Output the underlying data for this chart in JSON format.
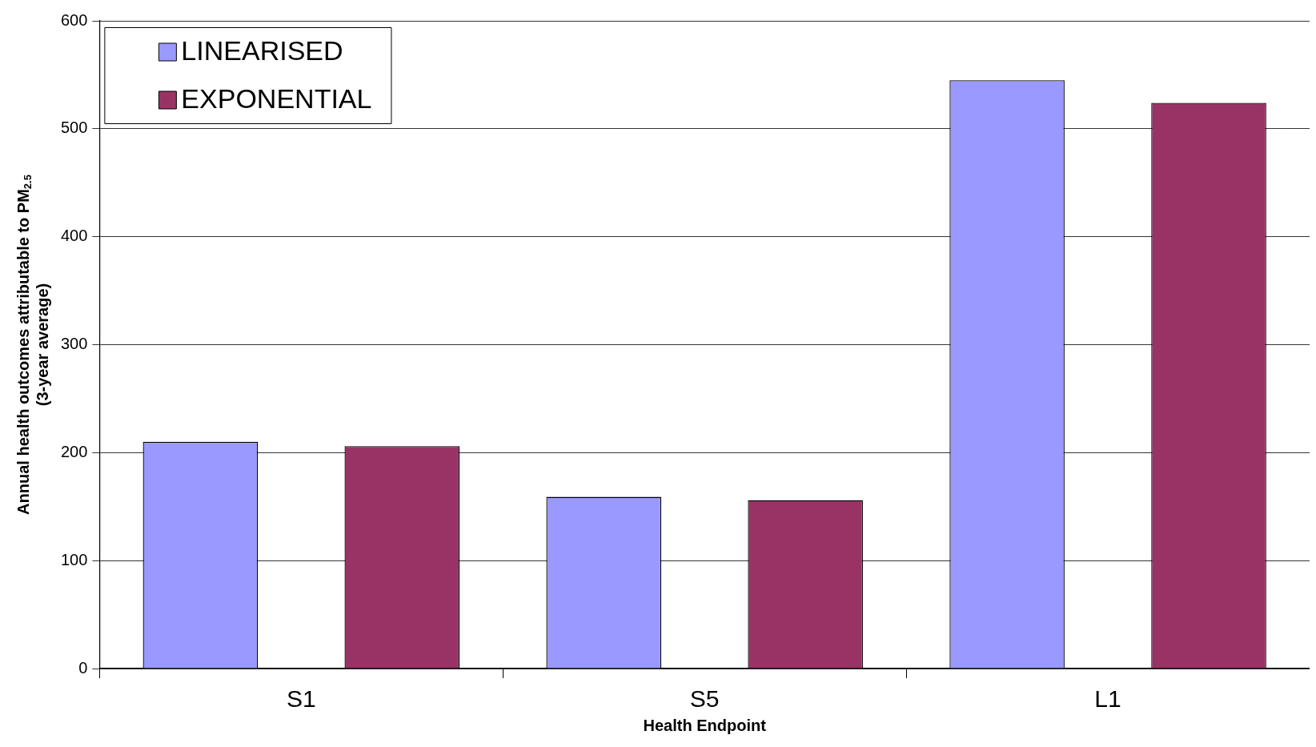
{
  "chart_data": {
    "type": "bar",
    "xlabel": "Health Endpoint",
    "ylabel": "Annual health outcomes attributable to PM$_{2.5}$ (3-year average)",
    "categories": [
      "S1",
      "S5",
      "L1"
    ],
    "series": [
      {
        "name": "LINEARISED",
        "color": "#9999ff",
        "values": [
          210,
          159,
          545
        ]
      },
      {
        "name": "EXPONENTIAL",
        "color": "#993366",
        "values": [
          206,
          156,
          524
        ]
      }
    ],
    "ylim": [
      0,
      600
    ],
    "yticks": [
      0,
      100,
      200,
      300,
      400,
      500,
      600
    ],
    "grid": "y",
    "legend": "top left"
  }
}
